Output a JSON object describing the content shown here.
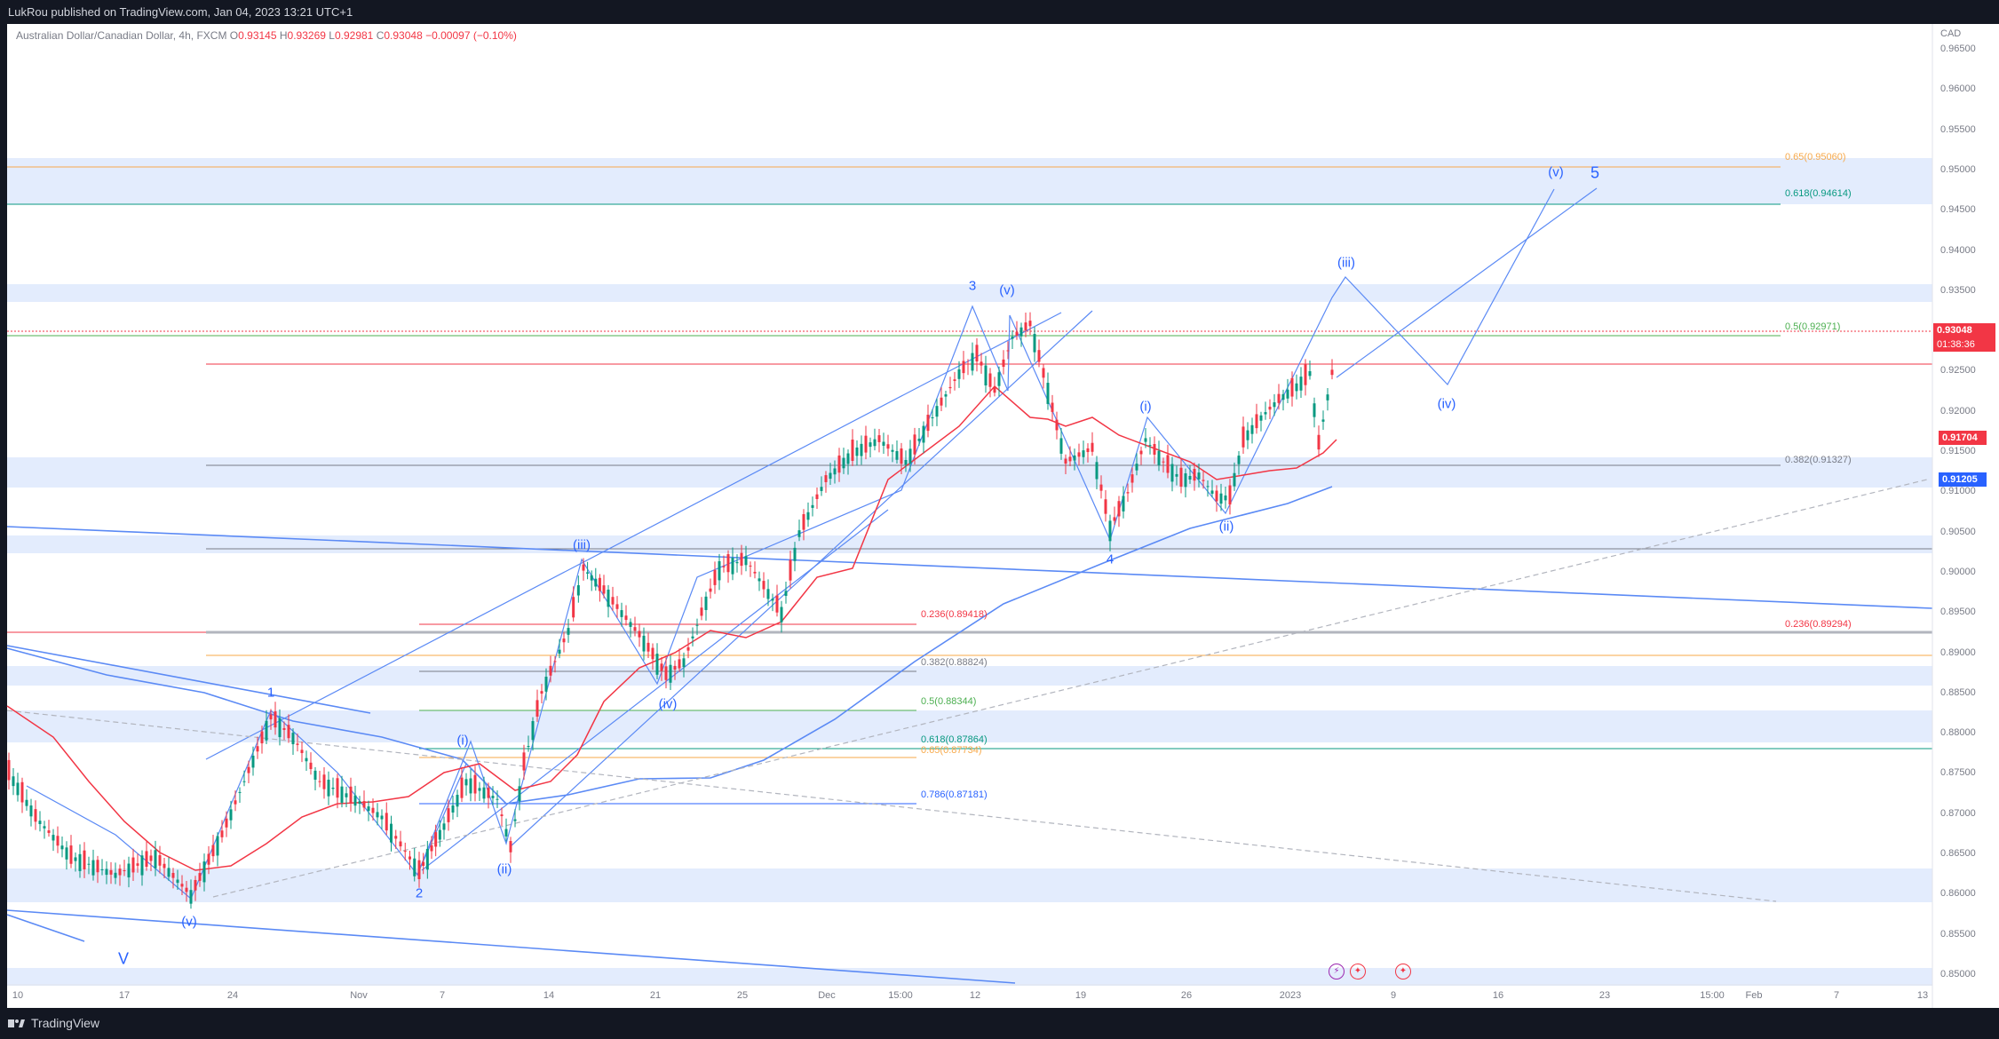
{
  "header": {
    "published": "LukRou published on TradingView.com, Jan 04, 2023 13:21 UTC+1"
  },
  "legend": {
    "symbol": "Australian Dollar/Canadian Dollar, 4h, FXCM",
    "open_label": "O",
    "open": "0.93145",
    "high_label": "H",
    "high": "0.93269",
    "low_label": "L",
    "low": "0.92981",
    "close_label": "C",
    "close": "0.93048",
    "change": "−0.00097 (−0.10%)"
  },
  "price_axis": {
    "currency": "CAD",
    "ticks": [
      "0.96500",
      "0.96000",
      "0.95500",
      "0.95000",
      "0.94500",
      "0.94000",
      "0.93500",
      "0.93000",
      "0.92500",
      "0.92000",
      "0.91500",
      "0.91000",
      "0.90500",
      "0.90000",
      "0.89500",
      "0.89000",
      "0.88500",
      "0.88000",
      "0.87500",
      "0.87000",
      "0.86500",
      "0.86000",
      "0.85500",
      "0.85000"
    ],
    "last_price": "0.93048",
    "countdown": "01:38:36",
    "ma_fast_value": "0.91704",
    "ma_slow_value": "0.91205",
    "last_color": "#f23645",
    "ma_fast_color": "#f23645",
    "ma_slow_color": "#2962ff"
  },
  "time_axis": {
    "ticks": [
      "10",
      "17",
      "24",
      "Nov",
      "7",
      "14",
      "21",
      "25",
      "Dec",
      "15:00",
      "12",
      "19",
      "26",
      "2023",
      "9",
      "16",
      "23",
      "15:00",
      "Feb",
      "7",
      "13"
    ]
  },
  "fib_levels": {
    "upper": [
      {
        "label": "0.65(0.95060)",
        "color": "#f7a94a"
      },
      {
        "label": "0.618(0.94614)",
        "color": "#089981"
      },
      {
        "label": "0.5(0.92971)",
        "color": "#4caf50"
      },
      {
        "label": "0.382(0.91327)",
        "color": "#787b86"
      },
      {
        "label": "0.236(0.89294)",
        "color": "#f23645"
      }
    ],
    "lower": [
      {
        "label": "0.236(0.89418)",
        "color": "#f23645"
      },
      {
        "label": "0.382(0.88824)",
        "color": "#787b86"
      },
      {
        "label": "0.5(0.88344)",
        "color": "#4caf50"
      },
      {
        "label": "0.618(0.87864)",
        "color": "#089981"
      },
      {
        "label": "0.65(0.87734)",
        "color": "#f7a94a"
      },
      {
        "label": "0.786(0.87181)",
        "color": "#2962ff"
      }
    ]
  },
  "wave_labels": {
    "v_big": "V",
    "one": "1",
    "two": "2",
    "three": "3",
    "four": "4",
    "five": "5",
    "i": "(i)",
    "ii": "(ii)",
    "iii": "(iii)",
    "iv": "(iv)",
    "v": "(v)"
  },
  "footer": {
    "brand": "TradingView"
  },
  "colors": {
    "zone": "#e3ecfd",
    "wave_line": "#5b8af5",
    "up_candle": "#089981",
    "down_candle": "#f23645",
    "ma_fast": "#f23645",
    "ma_slow": "#2962ff"
  }
}
